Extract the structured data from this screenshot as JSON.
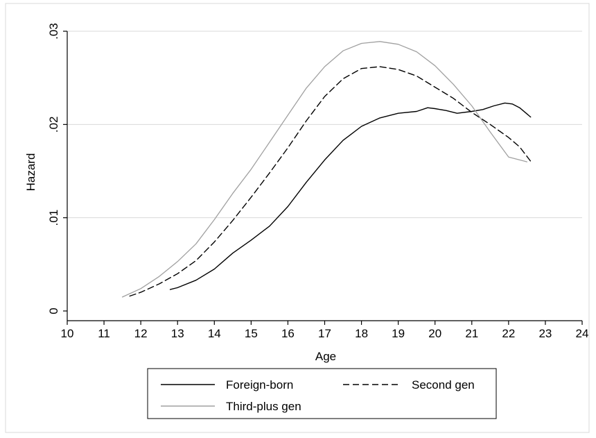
{
  "chart_data": {
    "type": "line",
    "xlabel": "Age",
    "ylabel": "Hazard",
    "xlim": [
      10,
      24
    ],
    "ylim": [
      0,
      0.03
    ],
    "x_ticks": [
      10,
      11,
      12,
      13,
      14,
      15,
      16,
      17,
      18,
      19,
      20,
      21,
      22,
      23,
      24
    ],
    "x_tick_labels": [
      "10",
      "11",
      "12",
      "13",
      "14",
      "15",
      "16",
      "17",
      "18",
      "19",
      "20",
      "21",
      "22",
      "23",
      "24"
    ],
    "y_ticks": [
      0,
      0.01,
      0.02,
      0.03
    ],
    "y_tick_labels": [
      "0",
      ".01",
      ".02",
      ".03"
    ],
    "grid": "horizontal",
    "legend_position": "bottom",
    "series": [
      {
        "name": "Foreign-born",
        "color": "#000000",
        "dash": "solid",
        "x": [
          12.8,
          13.0,
          13.5,
          14.0,
          14.5,
          15.0,
          15.5,
          16.0,
          16.5,
          17.0,
          17.5,
          18.0,
          18.5,
          19.0,
          19.5,
          19.8,
          20.0,
          20.3,
          20.6,
          21.0,
          21.3,
          21.6,
          21.9,
          22.1,
          22.3,
          22.6
        ],
        "y": [
          0.0023,
          0.0025,
          0.0033,
          0.0045,
          0.0062,
          0.0076,
          0.0091,
          0.0112,
          0.0138,
          0.0162,
          0.0183,
          0.0198,
          0.0207,
          0.0212,
          0.0214,
          0.0218,
          0.0217,
          0.0215,
          0.0212,
          0.0214,
          0.0216,
          0.022,
          0.0223,
          0.0222,
          0.0218,
          0.0208
        ]
      },
      {
        "name": "Second gen",
        "color": "#000000",
        "dash": "dashed",
        "x": [
          11.7,
          12.0,
          12.5,
          13.0,
          13.5,
          14.0,
          14.5,
          15.0,
          15.5,
          16.0,
          16.5,
          17.0,
          17.5,
          18.0,
          18.5,
          19.0,
          19.5,
          20.0,
          20.5,
          21.0,
          21.5,
          22.0,
          22.3,
          22.65
        ],
        "y": [
          0.0016,
          0.002,
          0.0029,
          0.004,
          0.0054,
          0.0074,
          0.0097,
          0.0122,
          0.0148,
          0.0175,
          0.0204,
          0.023,
          0.0249,
          0.026,
          0.0262,
          0.0259,
          0.0252,
          0.024,
          0.0228,
          0.0213,
          0.02,
          0.0186,
          0.0176,
          0.0158
        ]
      },
      {
        "name": "Third-plus gen",
        "color": "#a0a0a0",
        "dash": "solid",
        "x": [
          11.5,
          12.0,
          12.5,
          13.0,
          13.5,
          14.0,
          14.5,
          15.0,
          15.5,
          16.0,
          16.5,
          17.0,
          17.5,
          18.0,
          18.5,
          19.0,
          19.5,
          20.0,
          20.5,
          21.0,
          21.5,
          22.0,
          22.5
        ],
        "y": [
          0.0015,
          0.0024,
          0.0037,
          0.0053,
          0.0072,
          0.0098,
          0.0126,
          0.0152,
          0.0181,
          0.021,
          0.0239,
          0.0262,
          0.0279,
          0.0287,
          0.0289,
          0.0286,
          0.0278,
          0.0263,
          0.0243,
          0.022,
          0.0192,
          0.0165,
          0.016
        ]
      }
    ]
  }
}
